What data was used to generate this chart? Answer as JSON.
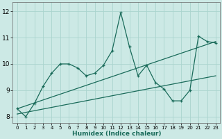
{
  "xlabel": "Humidex (Indice chaleur)",
  "ylabel": "",
  "xlim": [
    -0.5,
    23.5
  ],
  "ylim": [
    7.75,
    12.35
  ],
  "yticks": [
    8,
    9,
    10,
    11,
    12
  ],
  "xticks": [
    0,
    1,
    2,
    3,
    4,
    5,
    6,
    7,
    8,
    9,
    10,
    11,
    12,
    13,
    14,
    15,
    16,
    17,
    18,
    19,
    20,
    21,
    22,
    23
  ],
  "background_color": "#cce9e5",
  "grid_color": "#aad4ce",
  "line_color": "#1a6b5a",
  "line1_x": [
    0,
    1,
    2,
    3,
    4,
    5,
    6,
    7,
    8,
    9,
    10,
    11,
    12,
    13,
    14,
    15,
    16,
    17,
    18,
    19,
    20,
    21,
    22,
    23
  ],
  "line1_y": [
    8.3,
    8.0,
    8.5,
    9.15,
    9.65,
    10.0,
    10.0,
    9.85,
    9.55,
    9.65,
    9.95,
    10.5,
    11.95,
    10.65,
    9.55,
    9.95,
    9.3,
    9.05,
    8.6,
    8.6,
    9.0,
    11.05,
    10.85,
    10.8
  ],
  "line2_x": [
    0,
    23
  ],
  "line2_y": [
    8.3,
    10.85
  ],
  "line3_x": [
    0,
    23
  ],
  "line3_y": [
    8.1,
    9.55
  ]
}
